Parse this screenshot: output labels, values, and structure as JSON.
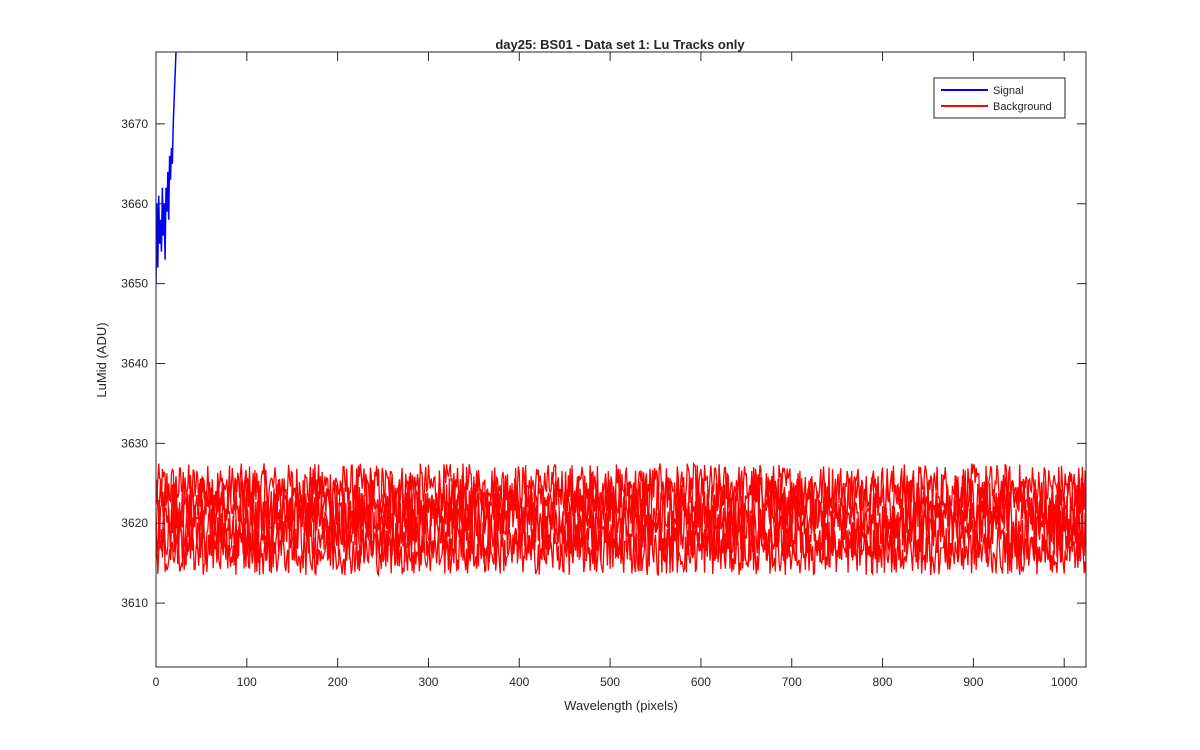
{
  "chart_data": {
    "type": "line",
    "title": "day25: BS01 - Data set 1: Lu Tracks only",
    "xlabel": "Wavelength (pixels)",
    "ylabel": "LuMid (ADU)",
    "xlim": [
      0,
      1024
    ],
    "ylim": [
      3602,
      3679
    ],
    "x_ticks": [
      0,
      100,
      200,
      300,
      400,
      500,
      600,
      700,
      800,
      900,
      1000
    ],
    "y_ticks": [
      3610,
      3620,
      3630,
      3640,
      3650,
      3660,
      3670
    ],
    "grid": false,
    "legend_position": "top-right",
    "series": [
      {
        "name": "Signal",
        "color": "#0000ff",
        "x": [
          0,
          1,
          2,
          3,
          4,
          5,
          6,
          7,
          8,
          9,
          10,
          11,
          12,
          13,
          14,
          15,
          16,
          17,
          18,
          19,
          20,
          21,
          22,
          23
        ],
        "y": [
          3650,
          3660,
          3652,
          3661,
          3655,
          3658,
          3654,
          3662,
          3656,
          3660,
          3653,
          3662,
          3659,
          3664,
          3658,
          3666,
          3663,
          3667,
          3665,
          3670,
          3673,
          3676,
          3679,
          3679
        ]
      },
      {
        "name": "Background",
        "color": "#ff0000",
        "x_range": [
          0,
          1024
        ],
        "tracks": [
          {
            "center": 3624.5,
            "amplitude": 3.0
          },
          {
            "center": 3622.5,
            "amplitude": 3.5
          },
          {
            "center": 3620.5,
            "amplitude": 3.5
          },
          {
            "center": 3618.5,
            "amplitude": 3.5
          },
          {
            "center": 3616.5,
            "amplitude": 3.0
          }
        ],
        "min": 3612,
        "max": 3629.5
      }
    ]
  }
}
